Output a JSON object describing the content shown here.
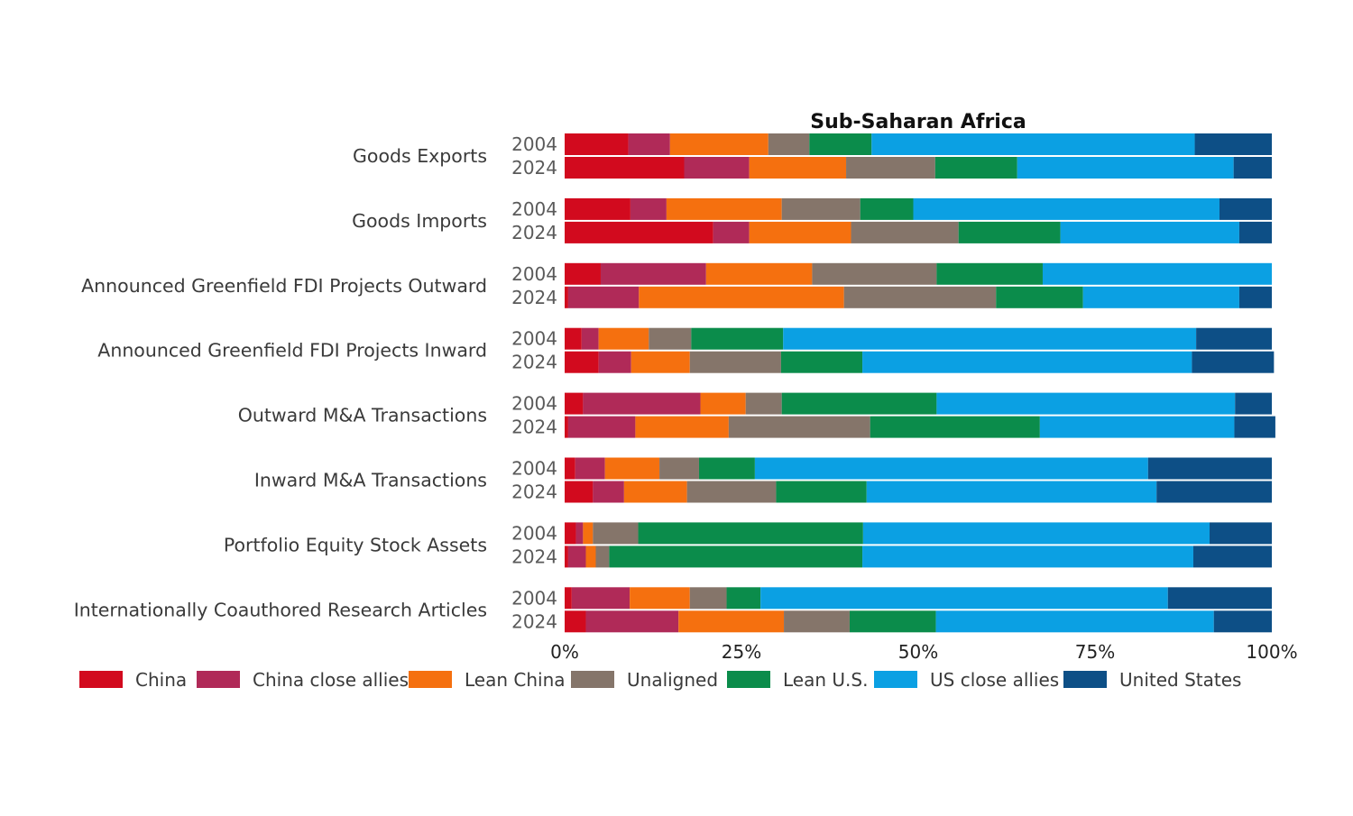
{
  "chart_data": {
    "type": "bar",
    "orientation": "horizontal",
    "stacked": true,
    "normalized": true,
    "title": "Sub-Saharan Africa",
    "categories": [
      "Goods Exports",
      "Goods Imports",
      "Announced Greenfield FDI Projects Outward",
      "Announced Greenfield FDI Projects Inward",
      "Outward M&A Transactions",
      "Inward M&A Transactions",
      "Portfolio Equity Stock Assets",
      "Internationally Coauthored Research Articles"
    ],
    "years": [
      "2004",
      "2024"
    ],
    "x_ticks": [
      "0%",
      "25%",
      "50%",
      "75%",
      "100%"
    ],
    "xlim": [
      0,
      100
    ],
    "grid": false,
    "legend_position": "bottom",
    "series": [
      {
        "name": "China",
        "color": "#d20a1e",
        "values_2004": [
          9.0,
          9.3,
          5.1,
          2.4,
          2.6,
          1.5,
          1.6,
          1.0
        ],
        "values_2024": [
          16.9,
          21.0,
          0.5,
          4.8,
          0.5,
          4.0,
          0.5,
          3.0
        ]
      },
      {
        "name": "China close allies",
        "color": "#b02a58",
        "values_2004": [
          5.9,
          5.1,
          14.9,
          2.4,
          16.6,
          4.2,
          1.0,
          8.2
        ],
        "values_2024": [
          9.2,
          5.1,
          10.0,
          4.6,
          9.5,
          4.4,
          2.5,
          13.1
        ]
      },
      {
        "name": "Lean China",
        "color": "#f5700f",
        "values_2004": [
          13.9,
          16.3,
          15.0,
          7.1,
          6.4,
          7.7,
          1.4,
          8.5
        ],
        "values_2024": [
          13.7,
          14.4,
          29.0,
          8.3,
          13.2,
          8.9,
          1.4,
          14.9
        ]
      },
      {
        "name": "Unaligned",
        "color": "#85756a",
        "values_2004": [
          5.8,
          11.1,
          17.6,
          6.0,
          5.1,
          5.6,
          6.4,
          5.2
        ],
        "values_2024": [
          12.6,
          15.2,
          21.5,
          12.9,
          20.0,
          12.6,
          1.9,
          9.3
        ]
      },
      {
        "name": "Lean U.S.",
        "color": "#0b8c4b",
        "values_2004": [
          8.8,
          7.5,
          15.0,
          13.0,
          21.9,
          7.9,
          31.8,
          4.8
        ],
        "values_2024": [
          11.6,
          14.4,
          12.3,
          11.5,
          24.0,
          12.8,
          35.8,
          12.2
        ]
      },
      {
        "name": "US close allies",
        "color": "#0ba0e3",
        "values_2004": [
          45.7,
          43.3,
          32.4,
          58.4,
          42.2,
          55.6,
          49.0,
          57.6
        ],
        "values_2024": [
          30.6,
          25.3,
          22.1,
          46.6,
          27.5,
          41.0,
          46.8,
          39.3
        ]
      },
      {
        "name": "United States",
        "color": "#0d4f86",
        "values_2004": [
          10.9,
          7.4,
          0.0,
          10.7,
          5.2,
          17.5,
          8.8,
          14.7
        ],
        "values_2024": [
          5.4,
          4.6,
          4.6,
          11.6,
          5.8,
          16.3,
          11.1,
          8.2
        ]
      }
    ]
  }
}
